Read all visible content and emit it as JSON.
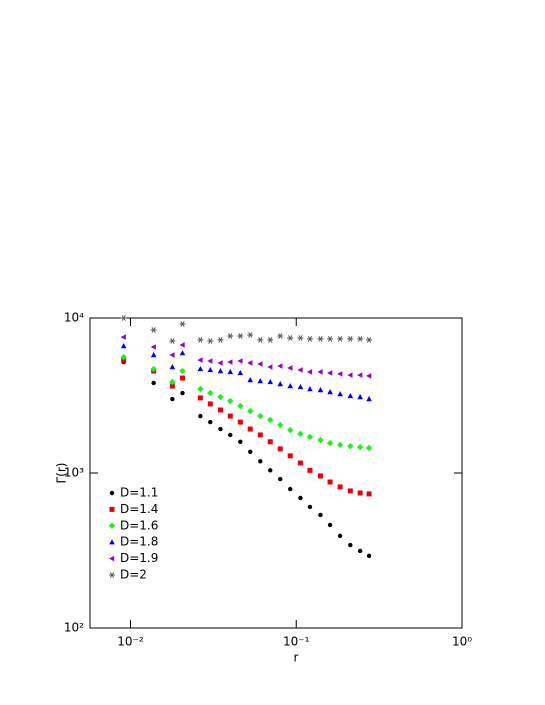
{
  "chart_data": {
    "type": "scatter",
    "xlabel": "r",
    "ylabel": "Γ(r)",
    "xscale": "log",
    "yscale": "log",
    "legend": "lower left",
    "xlim": [
      0.0057,
      1
    ],
    "ylim": [
      100,
      10000
    ],
    "xticks": [
      {
        "value": 0.01,
        "label": "10⁻²"
      },
      {
        "value": 0.1,
        "label": "10⁻¹"
      },
      {
        "value": 1,
        "label": "10⁰"
      }
    ],
    "yticks": [
      {
        "value": 100,
        "label": "10²"
      },
      {
        "value": 1000,
        "label": "10³"
      },
      {
        "value": 10000,
        "label": "10⁴"
      }
    ],
    "x": [
      0.0091,
      0.0138,
      0.0179,
      0.0206,
      0.0264,
      0.0303,
      0.0349,
      0.04,
      0.046,
      0.0528,
      0.0607,
      0.0697,
      0.0801,
      0.092,
      0.106,
      0.121,
      0.14,
      0.16,
      0.184,
      0.212,
      0.243,
      0.275
    ],
    "series": [
      {
        "name": "D=1.1",
        "color": "#000000",
        "marker": "circle",
        "values": [
          5200,
          3810,
          3000,
          3280,
          2330,
          2130,
          1920,
          1760,
          1590,
          1370,
          1190,
          1040,
          914,
          788,
          690,
          604,
          536,
          462,
          393,
          343,
          314,
          292
        ]
      },
      {
        "name": "D=1.4",
        "color": "#e8000b",
        "marker": "square",
        "values": [
          5350,
          4550,
          3640,
          4100,
          3050,
          2790,
          2550,
          2330,
          2130,
          1920,
          1760,
          1590,
          1430,
          1290,
          1160,
          1040,
          957,
          875,
          813,
          766,
          743,
          733
        ]
      },
      {
        "name": "D=1.6",
        "color": "#22ee22",
        "marker": "diamond",
        "values": [
          5600,
          4690,
          3870,
          4550,
          3480,
          3280,
          3090,
          2910,
          2710,
          2510,
          2330,
          2200,
          2040,
          1890,
          1790,
          1710,
          1630,
          1560,
          1520,
          1490,
          1470,
          1450
        ]
      },
      {
        "name": "D=1.8",
        "color": "#0000ff",
        "marker": "triangle",
        "values": [
          6590,
          5770,
          4830,
          5940,
          4690,
          4620,
          4550,
          4490,
          4420,
          3980,
          3920,
          3870,
          3750,
          3640,
          3590,
          3480,
          3430,
          3330,
          3230,
          3140,
          3090,
          3000
        ]
      },
      {
        "name": "D=1.9",
        "color": "#9a00cc",
        "marker": "left-triangle",
        "values": [
          7530,
          6500,
          5770,
          6700,
          5350,
          5280,
          5130,
          5200,
          5280,
          5130,
          5050,
          4830,
          4900,
          4760,
          4620,
          4490,
          4490,
          4420,
          4360,
          4280,
          4280,
          4230
        ]
      },
      {
        "name": "D=2",
        "color": "#555555",
        "marker": "star",
        "values": [
          10000,
          8370,
          7110,
          9150,
          7220,
          7110,
          7220,
          7650,
          7650,
          7770,
          7220,
          7220,
          7650,
          7430,
          7430,
          7330,
          7330,
          7330,
          7330,
          7330,
          7330,
          7220
        ]
      }
    ]
  }
}
